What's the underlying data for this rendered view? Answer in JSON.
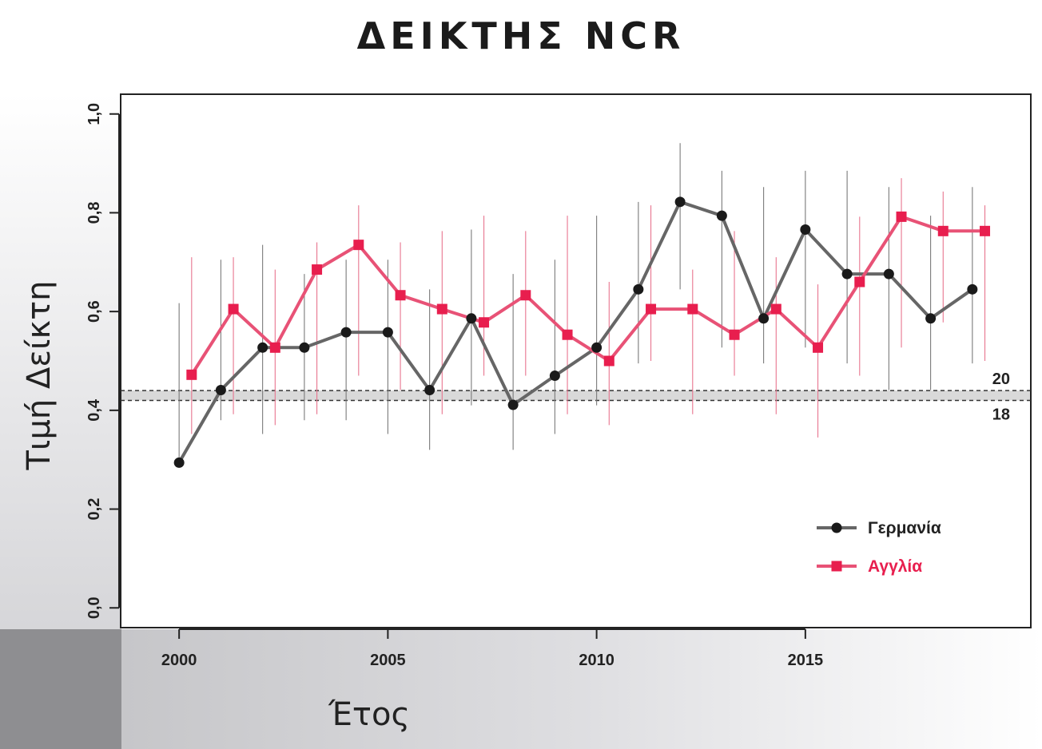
{
  "chart_data": {
    "type": "line",
    "title": "ΔΕΙΚΤΗΣ NCR",
    "xlabel": "Έτος",
    "ylabel": "Τιμή Δείκτη",
    "xlim": [
      1998.6,
      2020.4
    ],
    "ylim": [
      -0.04,
      1.04
    ],
    "x_ticks": [
      2000,
      2005,
      2010,
      2015
    ],
    "x_tick_labels": [
      "2000",
      "2005",
      "2010",
      "2015"
    ],
    "y_ticks": [
      0.0,
      0.2,
      0.4,
      0.6,
      0.8,
      1.0
    ],
    "y_tick_labels": [
      "0,0",
      "0,2",
      "0,4",
      "0,6",
      "0,8",
      "1,0"
    ],
    "grid": false,
    "legend_position": "bottom-right",
    "reference_band": {
      "lines": [
        {
          "label": "20",
          "y": 0.44
        },
        {
          "label": "18",
          "y": 0.42
        }
      ],
      "fill": "#d9d9d9"
    },
    "series": [
      {
        "name": "Γερμανία",
        "color": "#666666",
        "marker": "circle",
        "marker_color": "#1a1a1a",
        "x": [
          2000,
          2001,
          2002,
          2003,
          2004,
          2005,
          2006,
          2007,
          2008,
          2009,
          2010,
          2011,
          2012,
          2013,
          2014,
          2015,
          2016,
          2017,
          2018,
          2019
        ],
        "y": [
          0.294,
          0.441,
          0.527,
          0.527,
          0.558,
          0.558,
          0.441,
          0.586,
          0.411,
          0.47,
          0.527,
          0.645,
          0.822,
          0.794,
          0.586,
          0.766,
          0.676,
          0.676,
          0.586,
          0.645
        ],
        "err_low": [
          0.294,
          0.38,
          0.352,
          0.38,
          0.38,
          0.352,
          0.32,
          0.41,
          0.32,
          0.352,
          0.41,
          0.495,
          0.645,
          0.527,
          0.495,
          0.527,
          0.495,
          0.441,
          0.441,
          0.495
        ],
        "err_high": [
          0.617,
          0.705,
          0.735,
          0.676,
          0.705,
          0.705,
          0.645,
          0.766,
          0.676,
          0.705,
          0.794,
          0.822,
          0.941,
          0.885,
          0.852,
          0.885,
          0.885,
          0.852,
          0.794,
          0.852
        ]
      },
      {
        "name": "Αγγλία",
        "color": "#e85276",
        "marker": "square",
        "marker_color": "#e81e4e",
        "x": [
          2000.3,
          2001.3,
          2002.3,
          2003.3,
          2004.3,
          2005.3,
          2006.3,
          2007.3,
          2008.3,
          2009.3,
          2010.3,
          2011.3,
          2012.3,
          2013.3,
          2014.3,
          2015.3,
          2016.3,
          2017.3,
          2018.3,
          2019.3
        ],
        "y": [
          0.472,
          0.605,
          0.527,
          0.685,
          0.735,
          0.633,
          0.605,
          0.578,
          0.633,
          0.553,
          0.5,
          0.605,
          0.605,
          0.553,
          0.605,
          0.527,
          0.66,
          0.792,
          0.763,
          0.763
        ],
        "err_low": [
          0.352,
          0.392,
          0.37,
          0.392,
          0.47,
          0.441,
          0.392,
          0.47,
          0.47,
          0.392,
          0.37,
          0.5,
          0.392,
          0.47,
          0.392,
          0.345,
          0.47,
          0.527,
          0.578,
          0.5
        ],
        "err_high": [
          0.71,
          0.71,
          0.685,
          0.74,
          0.815,
          0.74,
          0.763,
          0.794,
          0.763,
          0.794,
          0.66,
          0.815,
          0.685,
          0.763,
          0.71,
          0.655,
          0.792,
          0.87,
          0.843,
          0.815
        ]
      }
    ]
  }
}
